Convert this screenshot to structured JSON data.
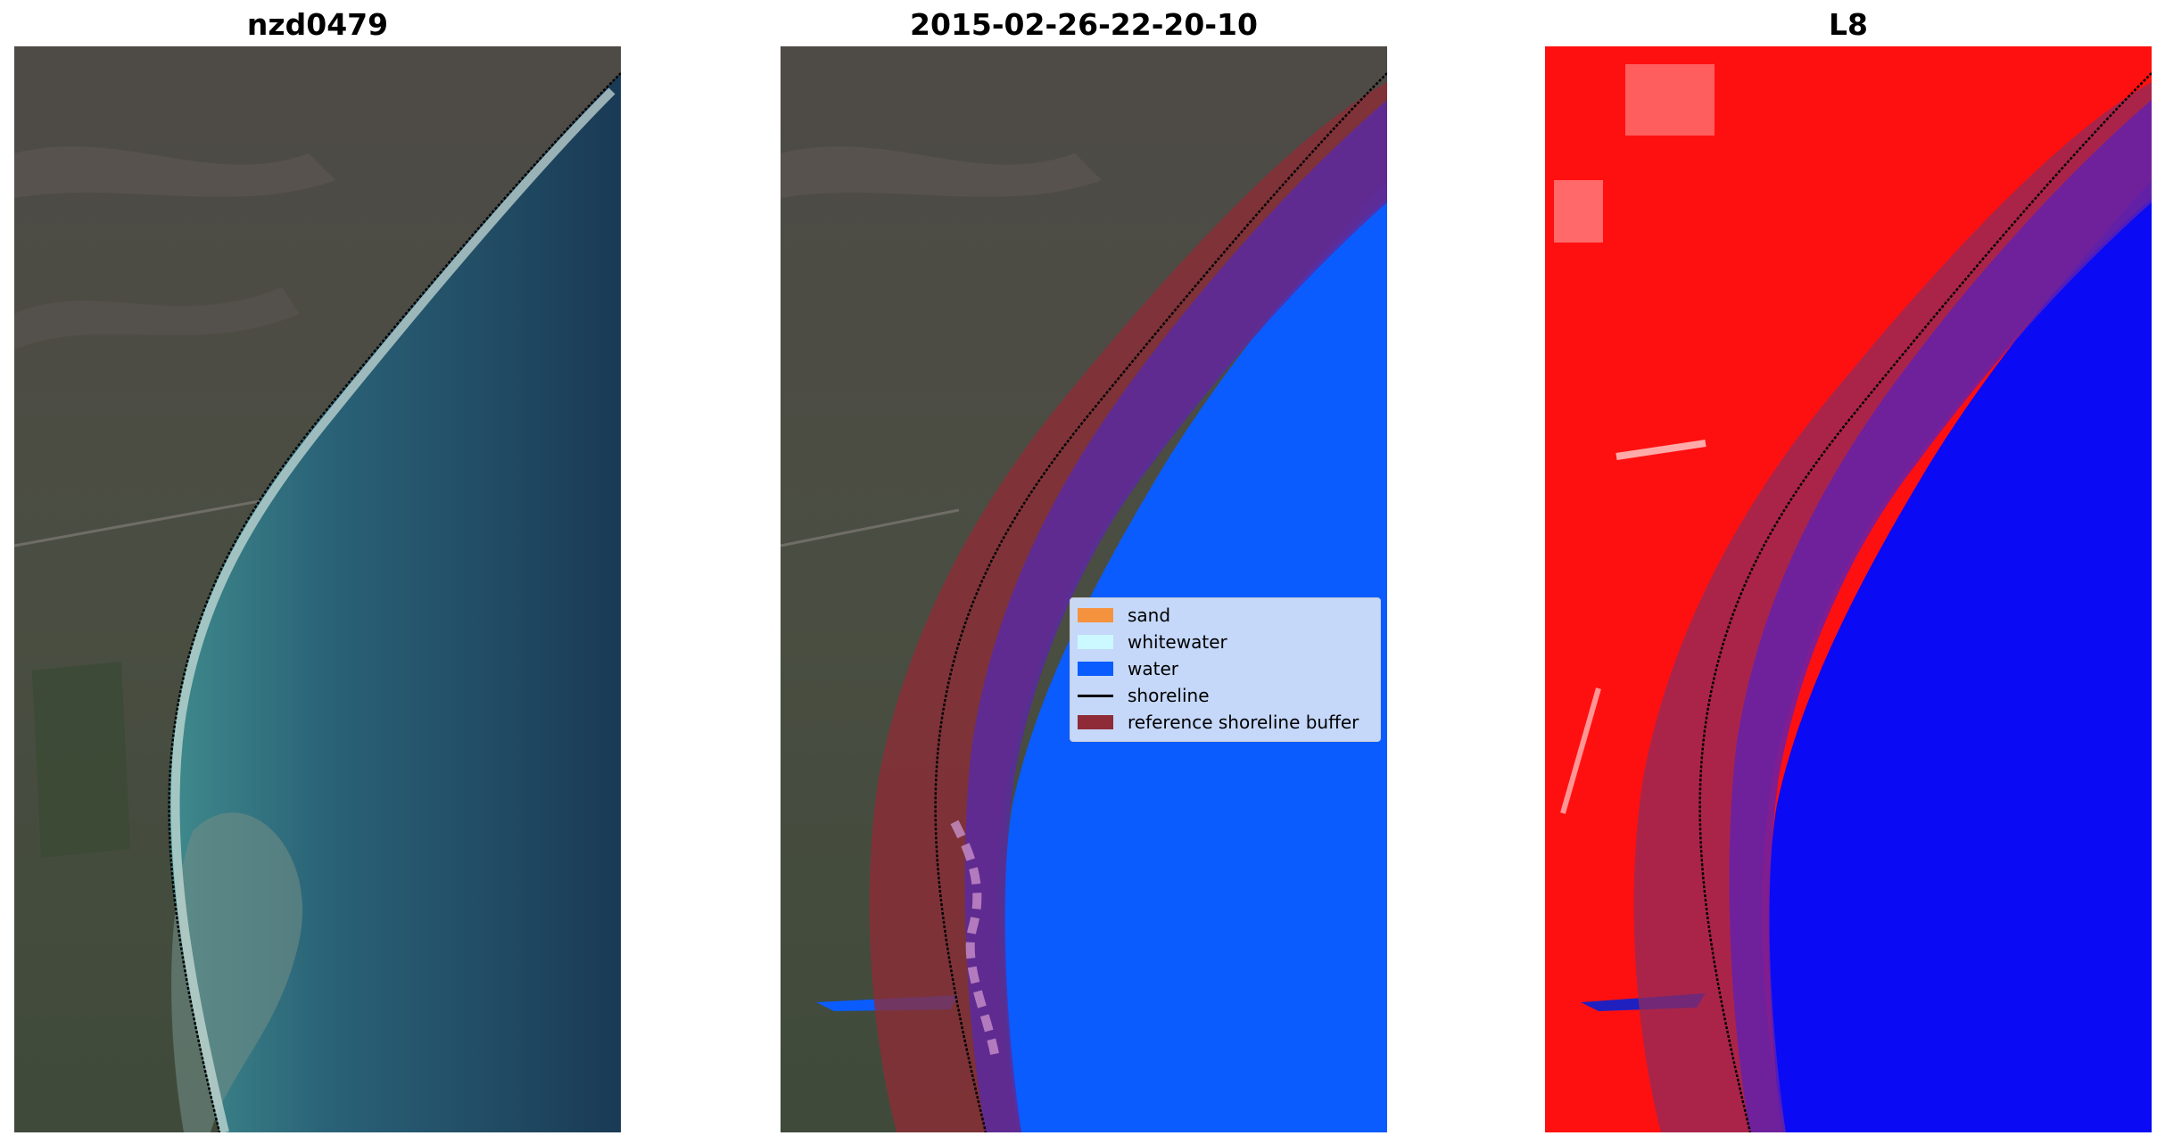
{
  "panels": [
    {
      "title": "nzd0479"
    },
    {
      "title": "2015-02-26-22-20-10"
    },
    {
      "title": "L8"
    }
  ],
  "legend": {
    "items": [
      {
        "label": "sand",
        "color": "#f5923e",
        "kind": "patch"
      },
      {
        "label": "whitewater",
        "color": "#ccf8ff",
        "kind": "patch"
      },
      {
        "label": "water",
        "color": "#0a5cff",
        "kind": "patch"
      },
      {
        "label": "shoreline",
        "color": "#000000",
        "kind": "line"
      },
      {
        "label": "reference shoreline buffer",
        "color": "#8e2b36",
        "kind": "patch"
      }
    ]
  },
  "colors": {
    "land": "#4d4a45",
    "sea": "#1f4b5e",
    "water_class": "#0a5cff",
    "buffer": "#8e2b36",
    "index_land": "#ff1010",
    "index_water": "#0a0af5"
  }
}
